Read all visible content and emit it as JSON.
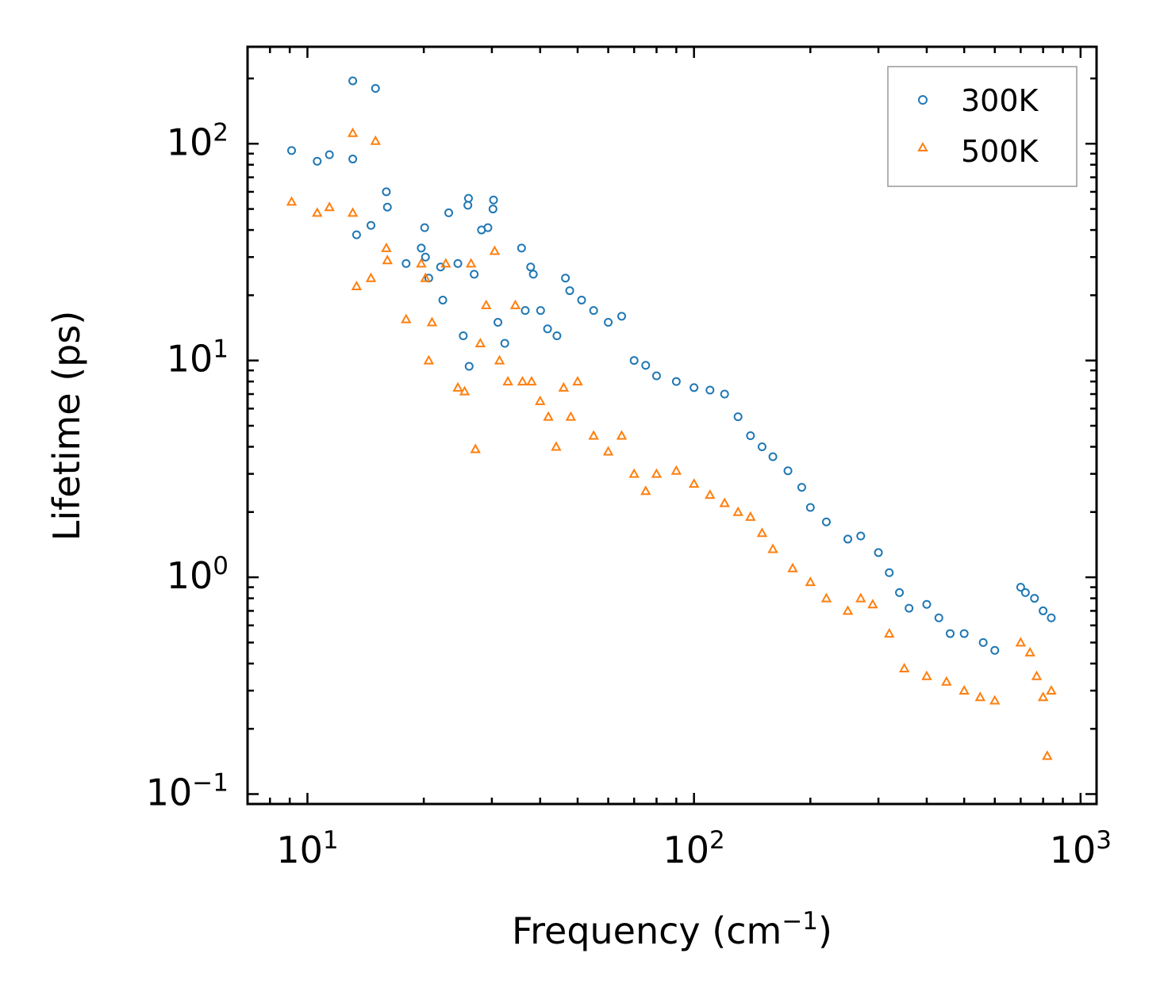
{
  "chart_data": {
    "type": "scatter",
    "title": "",
    "xlabel": "Frequency (cm",
    "xlabel_sup": "−1",
    "xlabel_close": ")",
    "ylabel": "Lifetime (ps)",
    "xscale": "log",
    "yscale": "log",
    "xlim": [
      7,
      1100
    ],
    "ylim": [
      0.09,
      280
    ],
    "grid": false,
    "legend_position": "top-right",
    "x_ticks": [
      {
        "value": 10,
        "base": "10",
        "exp": "1"
      },
      {
        "value": 100,
        "base": "10",
        "exp": "2"
      },
      {
        "value": 1000,
        "base": "10",
        "exp": "3"
      }
    ],
    "y_ticks": [
      {
        "value": 0.1,
        "base": "10",
        "exp": "−1"
      },
      {
        "value": 1,
        "base": "10",
        "exp": "0"
      },
      {
        "value": 10,
        "base": "10",
        "exp": "1"
      },
      {
        "value": 100,
        "base": "10",
        "exp": "2"
      }
    ],
    "series": [
      {
        "name": "300K",
        "marker": "circle",
        "color": "#1f77b4",
        "points": [
          [
            9.1,
            93
          ],
          [
            10.6,
            83
          ],
          [
            11.4,
            89
          ],
          [
            13.1,
            195
          ],
          [
            13.1,
            85
          ],
          [
            15.0,
            180
          ],
          [
            16.0,
            60
          ],
          [
            16.1,
            51
          ],
          [
            13.4,
            38
          ],
          [
            14.6,
            42
          ],
          [
            18.0,
            28
          ],
          [
            19.7,
            33
          ],
          [
            20.1,
            41
          ],
          [
            20.2,
            30
          ],
          [
            20.6,
            24
          ],
          [
            22.1,
            27
          ],
          [
            22.4,
            19
          ],
          [
            23.2,
            48
          ],
          [
            24.5,
            28
          ],
          [
            26.1,
            56
          ],
          [
            26.0,
            52
          ],
          [
            25.3,
            13
          ],
          [
            26.2,
            9.4
          ],
          [
            27.0,
            25
          ],
          [
            28.2,
            40
          ],
          [
            29.3,
            41
          ],
          [
            30.2,
            50
          ],
          [
            30.3,
            55
          ],
          [
            31.1,
            15
          ],
          [
            32.4,
            12
          ],
          [
            35.8,
            33
          ],
          [
            36.6,
            17
          ],
          [
            37.8,
            27
          ],
          [
            38.4,
            25
          ],
          [
            40.1,
            17
          ],
          [
            41.8,
            14
          ],
          [
            44.2,
            13
          ],
          [
            46.5,
            24
          ],
          [
            47.7,
            21
          ],
          [
            51.2,
            19
          ],
          [
            55.0,
            17
          ],
          [
            60.0,
            15
          ],
          [
            65.0,
            16
          ],
          [
            70.0,
            10
          ],
          [
            75.0,
            9.5
          ],
          [
            80.0,
            8.5
          ],
          [
            90.0,
            8.0
          ],
          [
            100.0,
            7.5
          ],
          [
            110.0,
            7.3
          ],
          [
            120.0,
            7.0
          ],
          [
            130.0,
            5.5
          ],
          [
            140.0,
            4.5
          ],
          [
            150.0,
            4.0
          ],
          [
            160.0,
            3.6
          ],
          [
            175.0,
            3.1
          ],
          [
            190.0,
            2.6
          ],
          [
            200.0,
            2.1
          ],
          [
            220.0,
            1.8
          ],
          [
            250.0,
            1.5
          ],
          [
            270.0,
            1.55
          ],
          [
            300.0,
            1.3
          ],
          [
            320.0,
            1.05
          ],
          [
            340.0,
            0.85
          ],
          [
            360.0,
            0.72
          ],
          [
            400.0,
            0.75
          ],
          [
            430.0,
            0.65
          ],
          [
            460.0,
            0.55
          ],
          [
            500.0,
            0.55
          ],
          [
            560.0,
            0.5
          ],
          [
            600.0,
            0.46
          ],
          [
            700.0,
            0.9
          ],
          [
            720.0,
            0.85
          ],
          [
            760.0,
            0.8
          ],
          [
            800.0,
            0.7
          ],
          [
            840.0,
            0.65
          ]
        ]
      },
      {
        "name": "500K",
        "marker": "triangle",
        "color": "#ff7f0e",
        "points": [
          [
            9.1,
            54
          ],
          [
            10.6,
            48
          ],
          [
            11.4,
            51
          ],
          [
            13.1,
            112
          ],
          [
            13.1,
            48
          ],
          [
            15.0,
            103
          ],
          [
            13.4,
            22
          ],
          [
            14.6,
            24
          ],
          [
            16.0,
            33
          ],
          [
            16.1,
            29
          ],
          [
            18.0,
            15.5
          ],
          [
            19.7,
            28
          ],
          [
            20.2,
            24
          ],
          [
            20.6,
            10
          ],
          [
            21.0,
            15
          ],
          [
            22.8,
            28
          ],
          [
            24.5,
            7.5
          ],
          [
            25.5,
            7.2
          ],
          [
            26.5,
            28
          ],
          [
            27.2,
            3.9
          ],
          [
            28.0,
            12
          ],
          [
            29.0,
            18
          ],
          [
            30.5,
            32
          ],
          [
            31.4,
            10
          ],
          [
            33.0,
            8
          ],
          [
            34.5,
            18
          ],
          [
            36.0,
            8
          ],
          [
            38.0,
            8
          ],
          [
            40.0,
            6.5
          ],
          [
            42.0,
            5.5
          ],
          [
            44.0,
            4.0
          ],
          [
            46.0,
            7.5
          ],
          [
            48.0,
            5.5
          ],
          [
            50.0,
            8.0
          ],
          [
            55.0,
            4.5
          ],
          [
            60.0,
            3.8
          ],
          [
            65.0,
            4.5
          ],
          [
            70.0,
            3.0
          ],
          [
            75.0,
            2.5
          ],
          [
            80.0,
            3.0
          ],
          [
            90.0,
            3.1
          ],
          [
            100.0,
            2.7
          ],
          [
            110.0,
            2.4
          ],
          [
            120.0,
            2.2
          ],
          [
            130.0,
            2.0
          ],
          [
            140.0,
            1.9
          ],
          [
            150.0,
            1.6
          ],
          [
            160.0,
            1.35
          ],
          [
            180.0,
            1.1
          ],
          [
            200.0,
            0.95
          ],
          [
            220.0,
            0.8
          ],
          [
            250.0,
            0.7
          ],
          [
            270.0,
            0.8
          ],
          [
            290.0,
            0.75
          ],
          [
            320.0,
            0.55
          ],
          [
            350.0,
            0.38
          ],
          [
            400.0,
            0.35
          ],
          [
            450.0,
            0.33
          ],
          [
            500.0,
            0.3
          ],
          [
            550.0,
            0.28
          ],
          [
            600.0,
            0.27
          ],
          [
            700.0,
            0.5
          ],
          [
            740.0,
            0.45
          ],
          [
            770.0,
            0.35
          ],
          [
            800.0,
            0.28
          ],
          [
            820.0,
            0.15
          ],
          [
            840.0,
            0.3
          ]
        ]
      }
    ]
  }
}
